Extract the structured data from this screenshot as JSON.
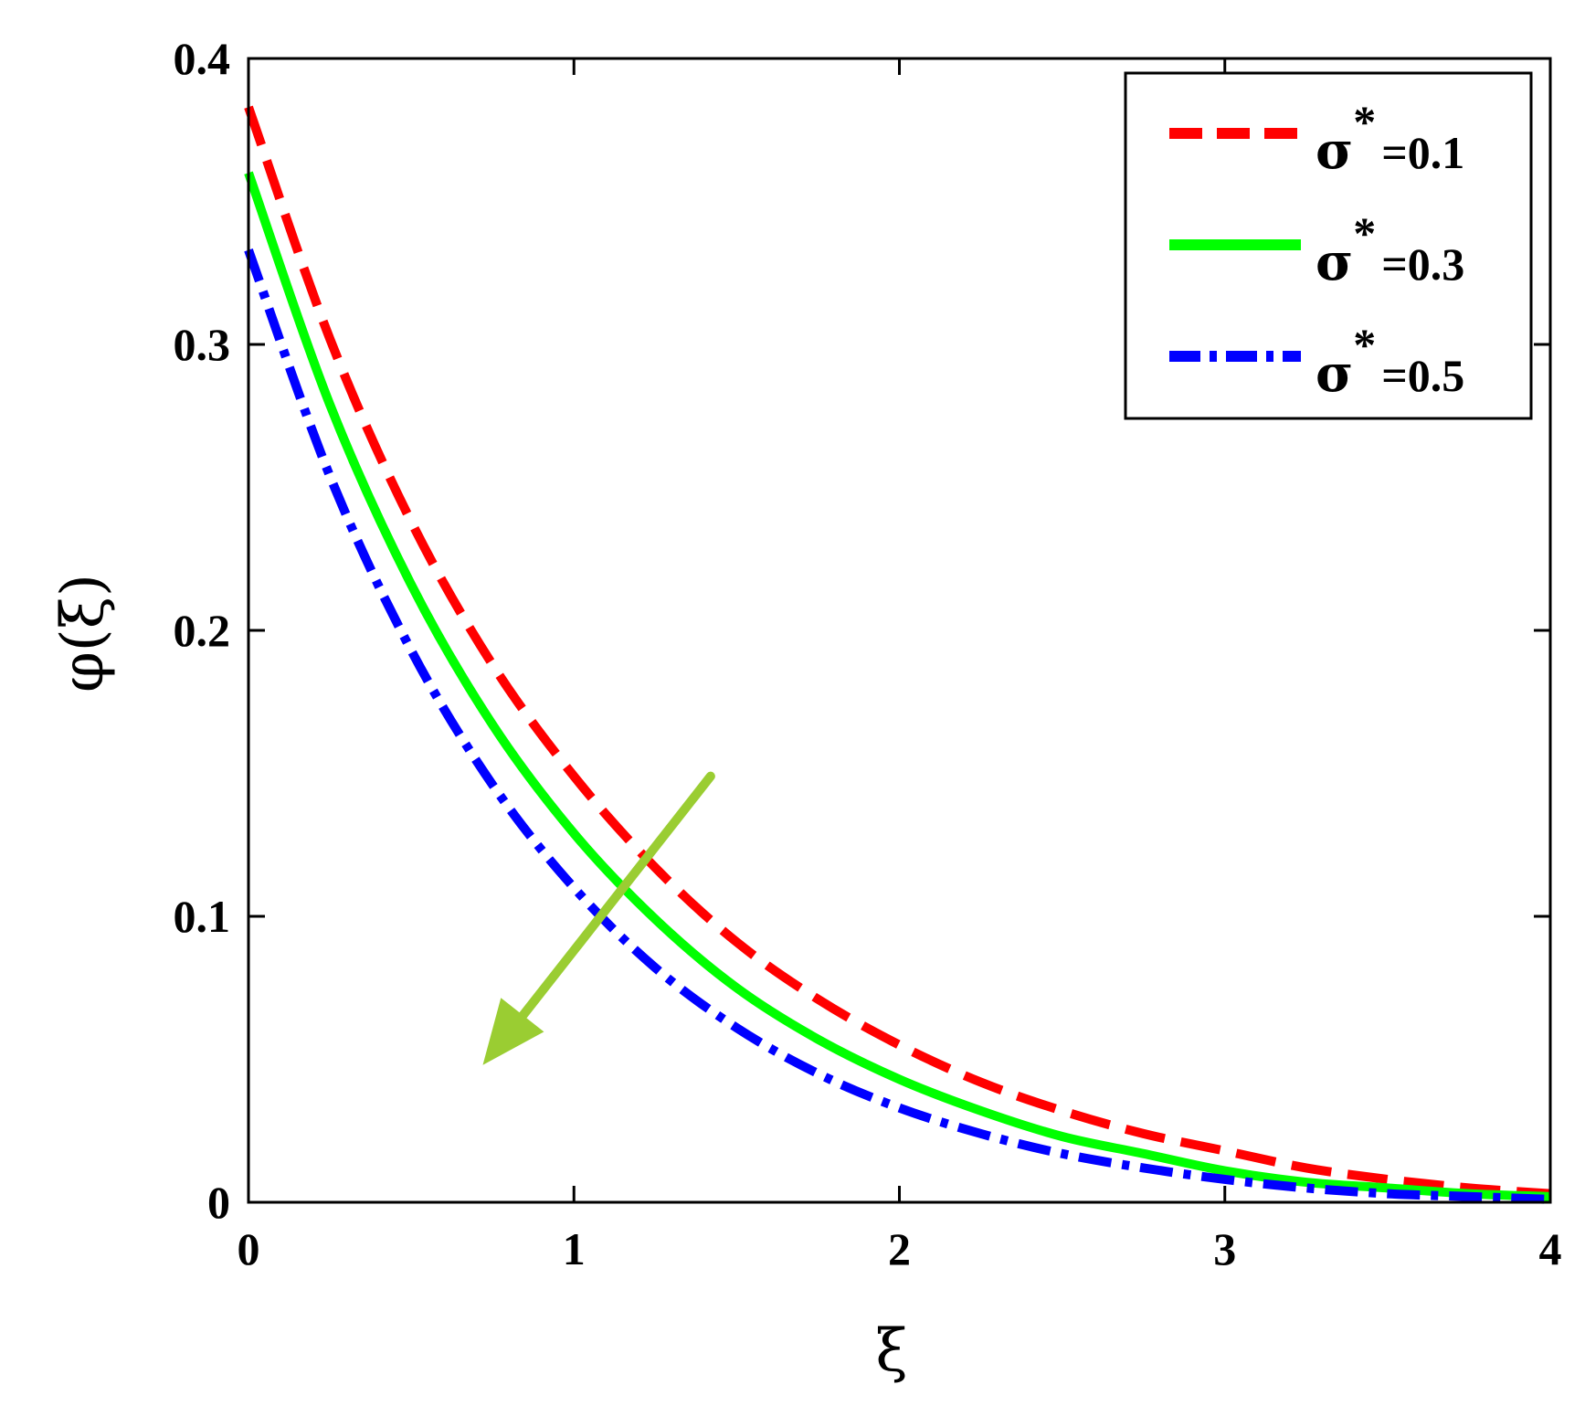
{
  "chart_data": {
    "type": "line",
    "xlabel": "ξ",
    "ylabel": "φ(ξ)",
    "xlim": [
      0,
      4
    ],
    "ylim": [
      0,
      0.4
    ],
    "xticks": [
      "0",
      "1",
      "2",
      "3",
      "4"
    ],
    "yticks": [
      "0",
      "0.1",
      "0.2",
      "0.3",
      "0.4"
    ],
    "grid": false,
    "legend_position": "top-right",
    "annotation": "arrow indicating decreasing φ(ξ) with increasing σ*",
    "annotation_color": "#9acd32",
    "series": [
      {
        "name": "σ*=0.1",
        "legend_symbol": "σ",
        "legend_value": "=0.1",
        "color": "#ff0000",
        "style": "dashed",
        "x": [
          0,
          0.25,
          0.5,
          0.75,
          1.0,
          1.25,
          1.5,
          1.75,
          2.0,
          2.25,
          2.5,
          2.75,
          3.0,
          3.25,
          3.5,
          3.75,
          4.0
        ],
        "y": [
          0.383,
          0.302,
          0.238,
          0.188,
          0.149,
          0.117,
          0.091,
          0.071,
          0.055,
          0.042,
          0.032,
          0.024,
          0.018,
          0.012,
          0.008,
          0.005,
          0.003
        ]
      },
      {
        "name": "σ*=0.3",
        "legend_symbol": "σ",
        "legend_value": "=0.3",
        "color": "#00ff00",
        "style": "solid",
        "x": [
          0,
          0.25,
          0.5,
          0.75,
          1.0,
          1.25,
          1.5,
          1.75,
          2.0,
          2.25,
          2.5,
          2.75,
          3.0,
          3.25,
          3.5,
          3.75,
          4.0
        ],
        "y": [
          0.36,
          0.279,
          0.216,
          0.167,
          0.129,
          0.099,
          0.075,
          0.057,
          0.043,
          0.032,
          0.023,
          0.017,
          0.011,
          0.007,
          0.005,
          0.003,
          0.002
        ]
      },
      {
        "name": "σ*=0.5",
        "legend_symbol": "σ",
        "legend_value": "=0.5",
        "color": "#0000ff",
        "style": "dashdot",
        "x": [
          0,
          0.25,
          0.5,
          0.75,
          1.0,
          1.25,
          1.5,
          1.75,
          2.0,
          2.25,
          2.5,
          2.75,
          3.0,
          3.25,
          3.5,
          3.75,
          4.0
        ],
        "y": [
          0.333,
          0.254,
          0.193,
          0.146,
          0.11,
          0.082,
          0.061,
          0.045,
          0.033,
          0.024,
          0.017,
          0.012,
          0.008,
          0.005,
          0.003,
          0.002,
          0.001
        ]
      }
    ]
  }
}
